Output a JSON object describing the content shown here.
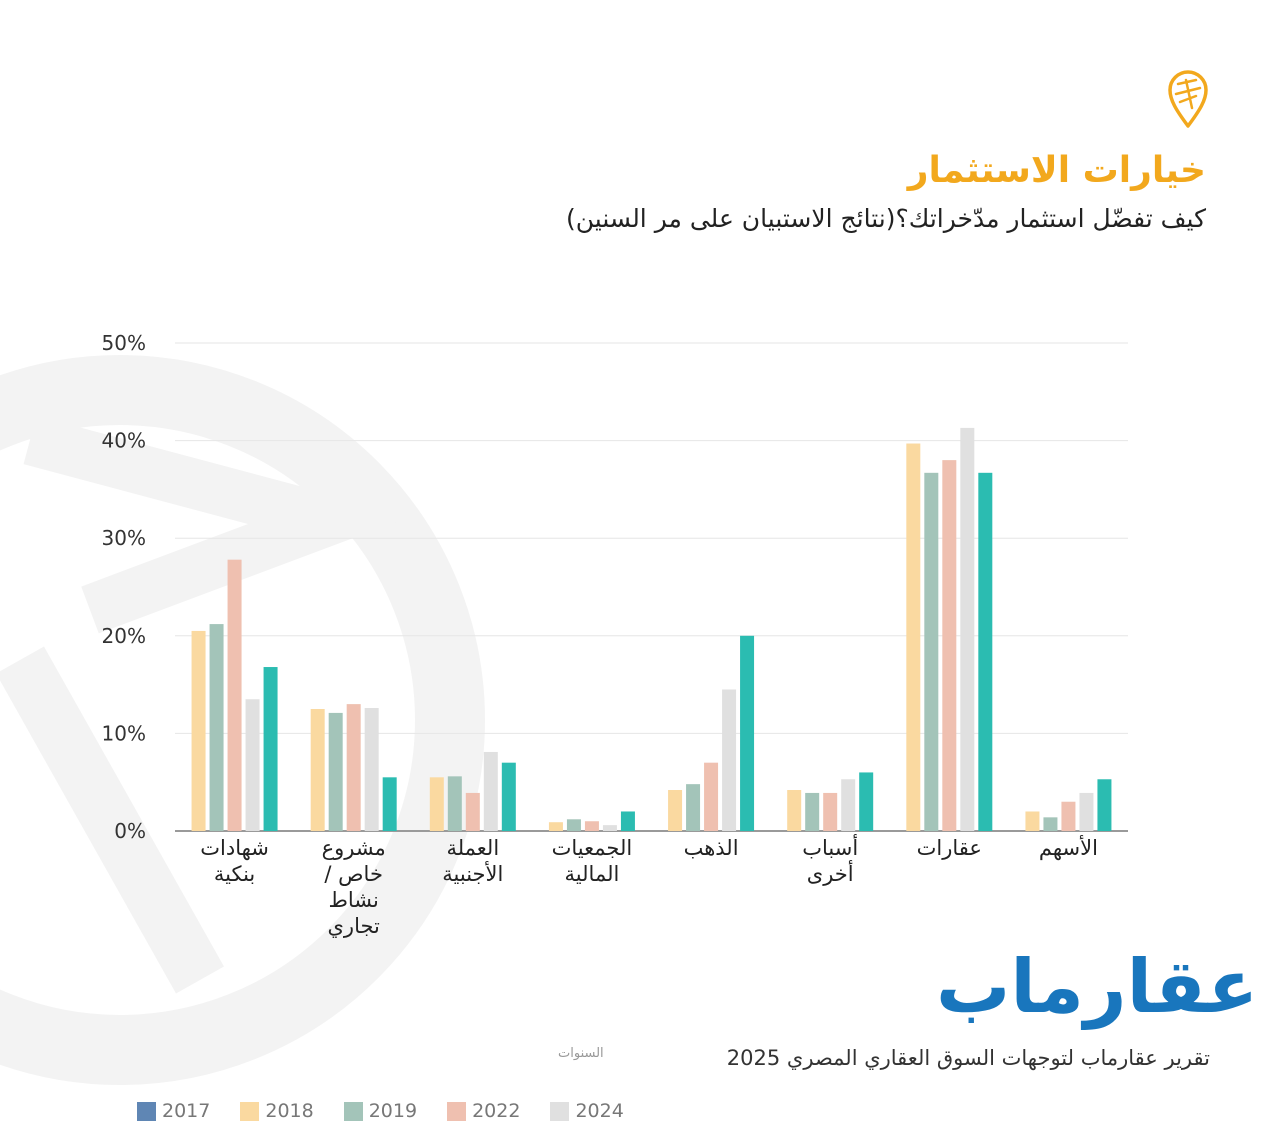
{
  "header": {
    "title": "خيارات الاستثمار",
    "subtitle": "كيف تفضّل استثمار مدّخراتك؟(نتائج الاستبيان على مر السنين)"
  },
  "logo_icon": "map-pin-logo-icon",
  "brand": {
    "name": "عقارماب",
    "color": "#1976bd"
  },
  "footer": {
    "report": "تقرير عقارماب لتوجهات السوق العقاري المصري 2025",
    "legend_title": "السنوات"
  },
  "legend": [
    {
      "label": "2017",
      "color": "#5f86b4"
    },
    {
      "label": "2018",
      "color": "#fad9a0"
    },
    {
      "label": "2019",
      "color": "#a3c4b9"
    },
    {
      "label": "2022",
      "color": "#efc0b0"
    },
    {
      "label": "2024",
      "color": "#e0e0e0"
    }
  ],
  "chart_data": {
    "type": "bar",
    "ylim": [
      0,
      50
    ],
    "yticks": [
      "0%",
      "10%",
      "20%",
      "30%",
      "40%",
      "50%"
    ],
    "grid": true,
    "categories": [
      [
        "شهادات",
        "بنكية"
      ],
      [
        "مشروع",
        "خاص /",
        "نشاط",
        "تجاري"
      ],
      [
        "العملة",
        "الأجنبية"
      ],
      [
        "الجمعيات",
        "المالية"
      ],
      [
        "الذهب"
      ],
      [
        "أسباب",
        "أخرى"
      ],
      [
        "عقارات"
      ],
      [
        "الأسهم"
      ]
    ],
    "series": [
      {
        "name": "2018",
        "color": "#fad9a0",
        "values": [
          20.5,
          12.5,
          5.5,
          0.9,
          4.2,
          4.2,
          39.7,
          2.0
        ]
      },
      {
        "name": "2019",
        "color": "#a3c4b9",
        "values": [
          21.2,
          12.1,
          5.6,
          1.2,
          4.8,
          3.9,
          36.7,
          1.4
        ]
      },
      {
        "name": "2022",
        "color": "#efc0b0",
        "values": [
          27.8,
          13.0,
          3.9,
          1.0,
          7.0,
          3.9,
          38.0,
          3.0
        ]
      },
      {
        "name": "2024",
        "color": "#e0e0e0",
        "values": [
          13.5,
          12.6,
          8.1,
          0.6,
          14.5,
          5.3,
          41.3,
          3.9
        ]
      },
      {
        "color": "#2bbcb1",
        "values": [
          16.8,
          5.5,
          7.0,
          2.0,
          20.0,
          6.0,
          36.7,
          5.3
        ]
      }
    ]
  }
}
